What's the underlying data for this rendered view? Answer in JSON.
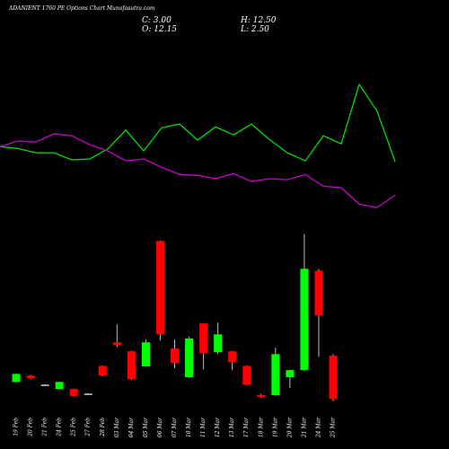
{
  "chart_data": {
    "type": "candlestick",
    "title": "ADANIENT 1760 PE Options Chart Munafasutra.com",
    "summary": [
      "C: 3.00",
      "H: 12.50",
      "O: 12.15",
      "L: 2.50"
    ],
    "categories": [
      "19 Feb",
      "20 Feb",
      "21 Feb",
      "24 Feb",
      "25 Feb",
      "27 Feb",
      "28 Feb",
      "03 Mar",
      "04 Mar",
      "05 Mar",
      "06 Mar",
      "07 Mar",
      "10 Mar",
      "11 Mar",
      "12 Mar",
      "13 Mar",
      "17 Mar",
      "18 Mar",
      "19 Mar",
      "20 Mar",
      "21 Mar",
      "24 Mar",
      "25 Mar"
    ],
    "open": [
      6.6,
      7.95,
      6.0,
      5.1,
      5.1,
      4.1,
      10.0,
      15.0,
      13.1,
      9.9,
      36.5,
      13.7,
      7.6,
      19.0,
      12.9,
      13.1,
      10.0,
      3.8,
      3.8,
      7.6,
      9.1,
      30.2,
      12.15
    ],
    "high": [
      8.4,
      8.1,
      6.1,
      6.7,
      5.2,
      4.2,
      10.1,
      18.8,
      13.2,
      15.6,
      36.6,
      15.6,
      16.2,
      19.1,
      19.2,
      13.2,
      10.1,
      4.1,
      13.9,
      9.2,
      38.0,
      30.6,
      12.5
    ],
    "low": [
      6.5,
      7.2,
      5.9,
      5.0,
      3.5,
      4.0,
      7.8,
      14.0,
      7.0,
      9.8,
      15.4,
      9.5,
      7.5,
      9.3,
      12.5,
      9.1,
      5.9,
      3.2,
      3.7,
      5.3,
      9.0,
      11.9,
      2.5
    ],
    "close": [
      8.3,
      7.4,
      6.0,
      6.6,
      3.6,
      4.1,
      7.95,
      14.4,
      7.2,
      15.0,
      16.7,
      10.6,
      15.8,
      12.7,
      16.7,
      10.8,
      6.0,
      3.4,
      12.5,
      9.1,
      30.6,
      20.7,
      3.0
    ],
    "up_color": "#00ff00",
    "down_color": "#ff0000",
    "flat_color": "#ffffff",
    "lines": [
      {
        "color": "#00dd00",
        "values": [
          56.5,
          56.1,
          55.2,
          55.2,
          53.7,
          53.9,
          56.0,
          60.0,
          55.6,
          60.5,
          61.3,
          57.9,
          60.7,
          59.0,
          61.3,
          58.0,
          55.2,
          53.5,
          58.8,
          57.1,
          69.7,
          64.0,
          53.3
        ]
      },
      {
        "color": "#cc00cc",
        "values": [
          56.5,
          57.7,
          57.5,
          59.2,
          58.8,
          56.9,
          55.6,
          53.5,
          53.9,
          52.1,
          50.6,
          50.4,
          49.7,
          50.8,
          49.1,
          49.7,
          49.5,
          50.6,
          48.1,
          47.8,
          44.3,
          43.6,
          46.2
        ]
      }
    ],
    "ylim": [
      0,
      87.6
    ]
  }
}
